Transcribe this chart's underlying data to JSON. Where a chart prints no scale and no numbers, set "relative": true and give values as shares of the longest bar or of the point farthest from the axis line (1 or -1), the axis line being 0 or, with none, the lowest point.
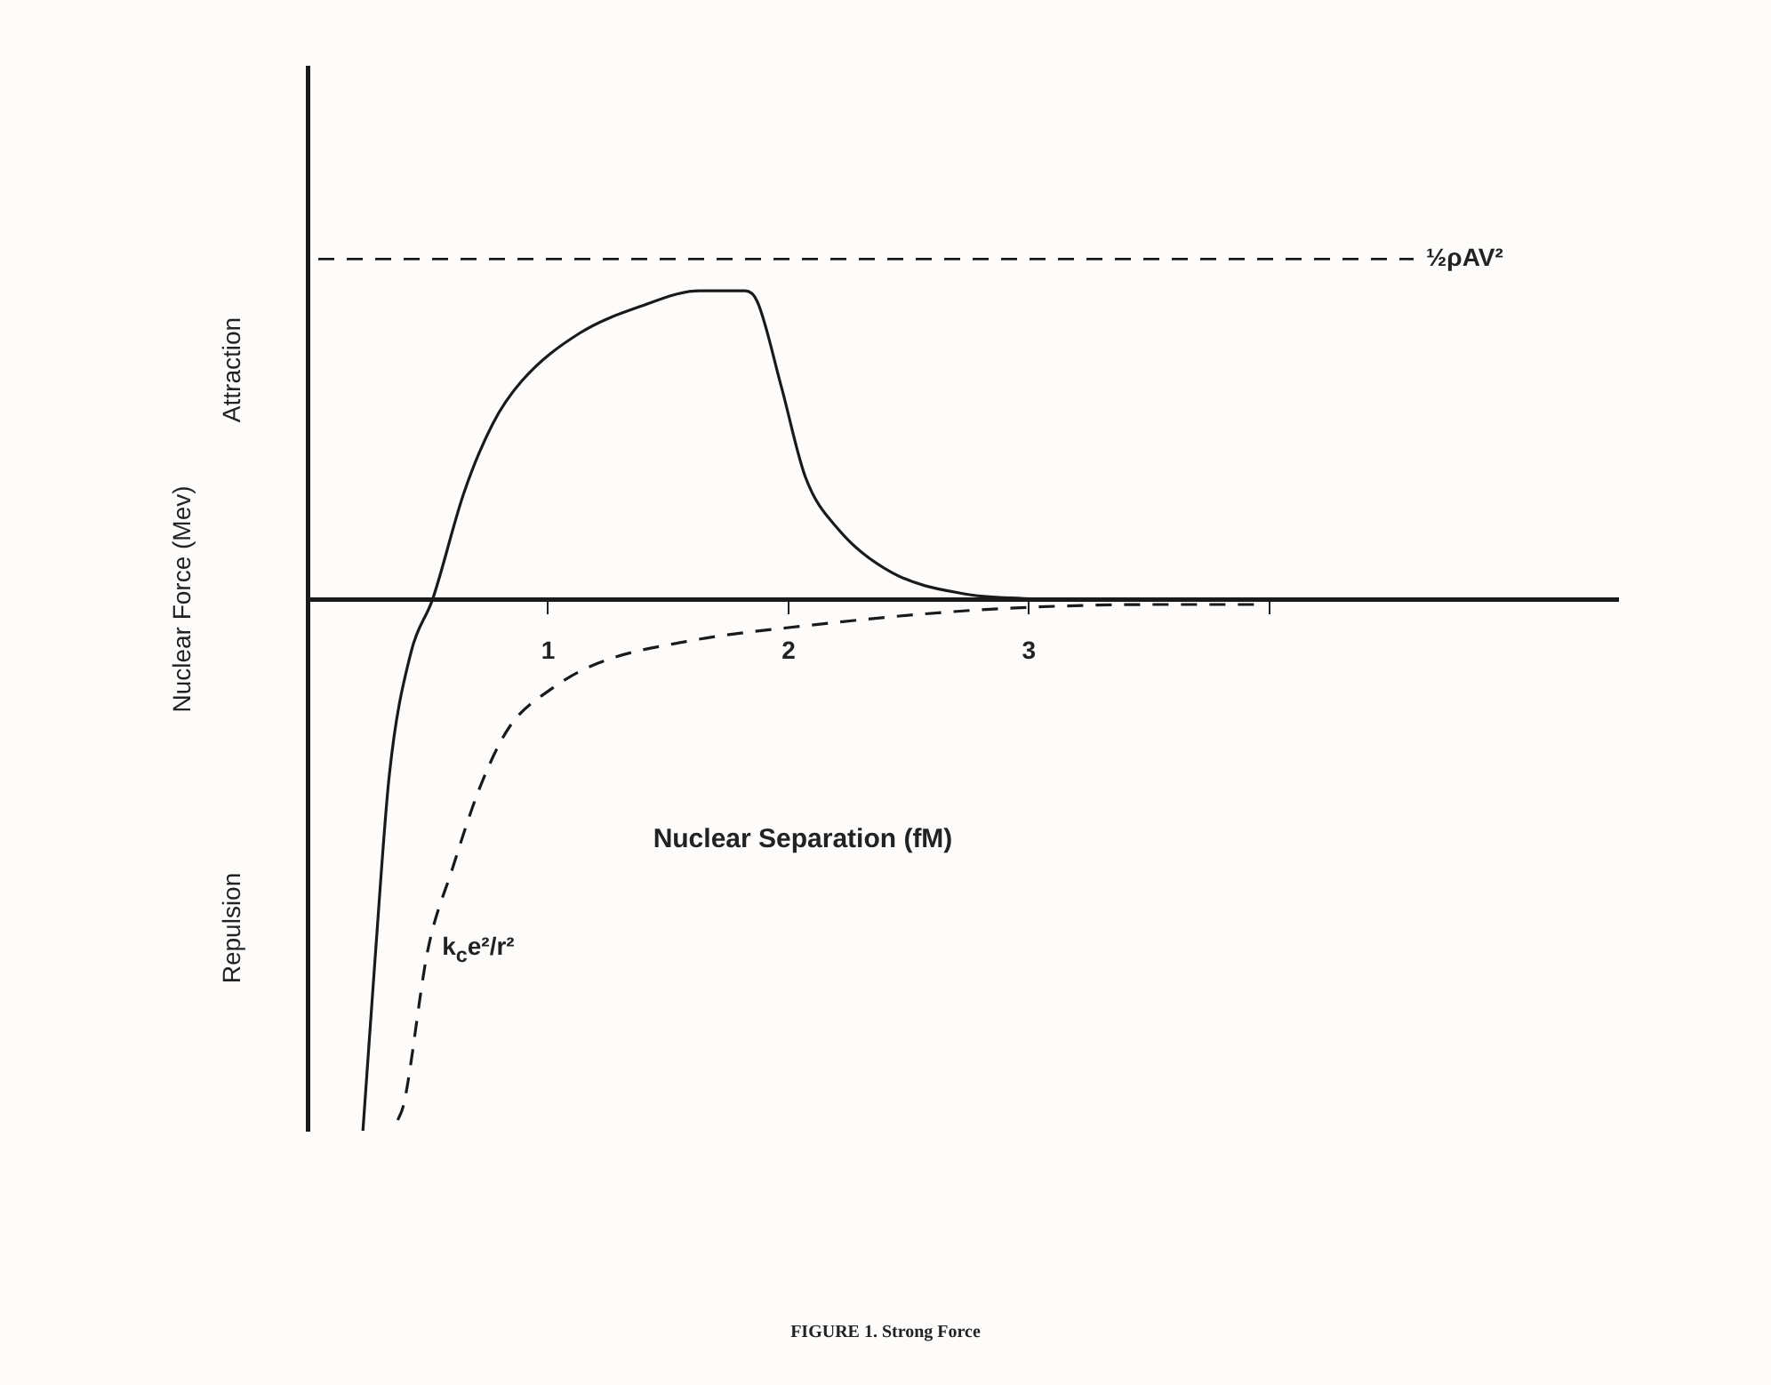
{
  "chart_data": {
    "type": "line",
    "relative": true,
    "xlabel": "Nuclear Separation (fM)",
    "ylabel": "Nuclear Force (Mev)",
    "xlim": [
      0,
      5.45
    ],
    "xticks": [
      1,
      2,
      3,
      {
        "value": 4,
        "label": null
      }
    ],
    "series": [
      {
        "color": "#1a1a1a",
        "line_style": "solid",
        "x": [
          0.23,
          0.28,
          0.34,
          0.43,
          0.52,
          0.65,
          0.77,
          0.89,
          1.13,
          1.38,
          1.63,
          1.82,
          1.87,
          1.97,
          2.07,
          2.21,
          2.43,
          2.73,
          3.02
        ],
        "values": [
          -1,
          -0.68,
          -0.33,
          -0.1,
          0,
          0.2,
          0.33,
          0.41,
          0.5,
          0.55,
          0.58,
          0.58,
          0.56,
          0.4,
          0.23,
          0.13,
          0.05,
          0.01,
          0
        ]
      },
      {
        "name": "k$_{c}$e²/r²",
        "color": "#1a1a1a",
        "line_style": "dashed",
        "x": [
          0.375,
          0.4,
          0.5,
          0.6,
          0.72,
          0.84,
          1.01,
          1.21,
          1.57,
          2.07,
          2.8,
          3.54,
          3.98
        ],
        "values": [
          -0.98,
          -0.95,
          -0.66,
          -0.51,
          -0.35,
          -0.24,
          -0.17,
          -0.12,
          -0.08,
          -0.05,
          -0.02,
          -0.01,
          -0.01
        ]
      }
    ],
    "ref_lines": [
      {
        "axis": "y",
        "value": 0.64,
        "label": "½ρAV²",
        "line_style": "dashed",
        "color": "#1a1a1a"
      }
    ],
    "annotations": [
      "Attraction",
      "Repulsion",
      "FIGURE 1. Strong Force"
    ],
    "marker": "none",
    "grid": false,
    "legend": false
  }
}
